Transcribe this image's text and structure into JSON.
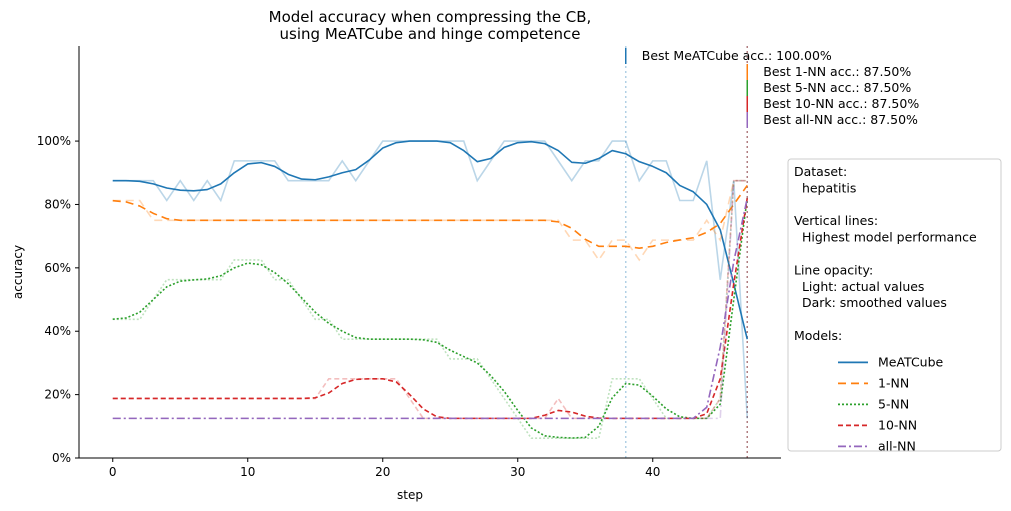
{
  "chart_data": {
    "type": "line",
    "title": "Model accuracy when compressing the CB,\nusing MeATCube and hinge competence",
    "xlabel": "step",
    "ylabel": "accuracy",
    "xlim": [
      -2.5,
      49.5
    ],
    "ylim": [
      0,
      1.3
    ],
    "x_ticks": [
      0,
      10,
      20,
      30,
      40
    ],
    "x_tick_labels": [
      "0",
      "10",
      "20",
      "30",
      "40"
    ],
    "y_ticks": [
      0,
      0.2,
      0.4,
      0.6,
      0.8,
      1.0
    ],
    "y_tick_labels": [
      "0%",
      "20%",
      "40%",
      "60%",
      "80%",
      "100%"
    ],
    "grid": false,
    "series": [
      {
        "name": "MeATCube",
        "color": "#1f77b4",
        "dash": "solid",
        "actual": [
          0.875,
          0.875,
          0.875,
          0.875,
          0.8125,
          0.875,
          0.8125,
          0.875,
          0.8125,
          0.9375,
          0.9375,
          0.9375,
          0.9375,
          0.875,
          0.875,
          0.875,
          0.875,
          0.9375,
          0.875,
          0.9375,
          1.0,
          1.0,
          1.0,
          1.0,
          1.0,
          1.0,
          1.0,
          0.875,
          0.9375,
          1.0,
          1.0,
          1.0,
          1.0,
          0.9375,
          0.875,
          0.9375,
          0.9375,
          1.0,
          1.0,
          0.875,
          0.9375,
          0.9375,
          0.8125,
          0.8125,
          0.9375,
          0.5625,
          0.875,
          0.125
        ],
        "smoothed": [
          0.875,
          0.875,
          0.873,
          0.865,
          0.852,
          0.845,
          0.843,
          0.847,
          0.865,
          0.9,
          0.928,
          0.932,
          0.92,
          0.895,
          0.88,
          0.878,
          0.887,
          0.9,
          0.91,
          0.94,
          0.978,
          0.995,
          1.0,
          1.0,
          1.0,
          0.995,
          0.97,
          0.935,
          0.945,
          0.98,
          0.995,
          0.998,
          0.992,
          0.97,
          0.933,
          0.93,
          0.945,
          0.97,
          0.96,
          0.935,
          0.92,
          0.9,
          0.86,
          0.84,
          0.8,
          0.72,
          0.55,
          0.375
        ]
      },
      {
        "name": "1-NN",
        "color": "#ff7f0e",
        "dash": "8,5",
        "actual": [
          0.8125,
          0.8125,
          0.8125,
          0.75,
          0.75,
          0.75,
          0.75,
          0.75,
          0.75,
          0.75,
          0.75,
          0.75,
          0.75,
          0.75,
          0.75,
          0.75,
          0.75,
          0.75,
          0.75,
          0.75,
          0.75,
          0.75,
          0.75,
          0.75,
          0.75,
          0.75,
          0.75,
          0.75,
          0.75,
          0.75,
          0.75,
          0.75,
          0.75,
          0.75,
          0.6875,
          0.6875,
          0.625,
          0.6875,
          0.6875,
          0.625,
          0.6875,
          0.6875,
          0.6875,
          0.6875,
          0.75,
          0.6875,
          0.875,
          0.875
        ],
        "smoothed": [
          0.812,
          0.808,
          0.795,
          0.772,
          0.755,
          0.75,
          0.75,
          0.75,
          0.75,
          0.75,
          0.75,
          0.75,
          0.75,
          0.75,
          0.75,
          0.75,
          0.75,
          0.75,
          0.75,
          0.75,
          0.75,
          0.75,
          0.75,
          0.75,
          0.75,
          0.75,
          0.75,
          0.75,
          0.75,
          0.75,
          0.75,
          0.75,
          0.75,
          0.745,
          0.725,
          0.69,
          0.668,
          0.668,
          0.668,
          0.662,
          0.668,
          0.68,
          0.688,
          0.695,
          0.712,
          0.74,
          0.8,
          0.86
        ]
      },
      {
        "name": "5-NN",
        "color": "#2ca02c",
        "dash": "2,2",
        "actual": [
          0.4375,
          0.4375,
          0.4375,
          0.5,
          0.5625,
          0.5625,
          0.5625,
          0.5625,
          0.5625,
          0.625,
          0.625,
          0.625,
          0.5625,
          0.5625,
          0.5,
          0.4375,
          0.4375,
          0.375,
          0.375,
          0.375,
          0.375,
          0.375,
          0.375,
          0.375,
          0.375,
          0.3125,
          0.3125,
          0.3125,
          0.25,
          0.1875,
          0.125,
          0.0625,
          0.0625,
          0.0625,
          0.0625,
          0.0625,
          0.0625,
          0.25,
          0.25,
          0.25,
          0.1875,
          0.125,
          0.125,
          0.125,
          0.125,
          0.1875,
          0.875,
          0.875
        ],
        "smoothed": [
          0.438,
          0.442,
          0.46,
          0.5,
          0.54,
          0.558,
          0.562,
          0.565,
          0.575,
          0.6,
          0.615,
          0.61,
          0.585,
          0.55,
          0.505,
          0.46,
          0.425,
          0.4,
          0.38,
          0.375,
          0.375,
          0.375,
          0.375,
          0.373,
          0.365,
          0.34,
          0.32,
          0.3,
          0.26,
          0.21,
          0.15,
          0.095,
          0.07,
          0.065,
          0.063,
          0.065,
          0.1,
          0.19,
          0.235,
          0.23,
          0.195,
          0.155,
          0.13,
          0.125,
          0.125,
          0.17,
          0.5,
          0.82
        ]
      },
      {
        "name": "10-NN",
        "color": "#d62728",
        "dash": "5,3",
        "actual": [
          0.1875,
          0.1875,
          0.1875,
          0.1875,
          0.1875,
          0.1875,
          0.1875,
          0.1875,
          0.1875,
          0.1875,
          0.1875,
          0.1875,
          0.1875,
          0.1875,
          0.1875,
          0.1875,
          0.25,
          0.25,
          0.25,
          0.25,
          0.25,
          0.25,
          0.1875,
          0.125,
          0.125,
          0.125,
          0.125,
          0.125,
          0.125,
          0.125,
          0.125,
          0.125,
          0.125,
          0.1875,
          0.125,
          0.125,
          0.125,
          0.125,
          0.125,
          0.125,
          0.125,
          0.125,
          0.125,
          0.125,
          0.125,
          0.1875,
          0.875,
          0.875
        ],
        "smoothed": [
          0.188,
          0.188,
          0.188,
          0.188,
          0.188,
          0.188,
          0.188,
          0.188,
          0.188,
          0.188,
          0.188,
          0.188,
          0.188,
          0.188,
          0.188,
          0.19,
          0.205,
          0.235,
          0.248,
          0.25,
          0.25,
          0.24,
          0.2,
          0.155,
          0.13,
          0.125,
          0.125,
          0.125,
          0.125,
          0.125,
          0.125,
          0.125,
          0.135,
          0.15,
          0.145,
          0.132,
          0.126,
          0.125,
          0.125,
          0.125,
          0.125,
          0.125,
          0.125,
          0.125,
          0.14,
          0.25,
          0.55,
          0.82
        ]
      },
      {
        "name": "all-NN",
        "color": "#9467bd",
        "dash": "8,3,2,3",
        "actual": [
          0.125,
          0.125,
          0.125,
          0.125,
          0.125,
          0.125,
          0.125,
          0.125,
          0.125,
          0.125,
          0.125,
          0.125,
          0.125,
          0.125,
          0.125,
          0.125,
          0.125,
          0.125,
          0.125,
          0.125,
          0.125,
          0.125,
          0.125,
          0.125,
          0.125,
          0.125,
          0.125,
          0.125,
          0.125,
          0.125,
          0.125,
          0.125,
          0.125,
          0.125,
          0.125,
          0.125,
          0.125,
          0.125,
          0.125,
          0.125,
          0.125,
          0.125,
          0.125,
          0.125,
          0.125,
          0.125,
          0.875,
          0.875
        ],
        "smoothed": [
          0.125,
          0.125,
          0.125,
          0.125,
          0.125,
          0.125,
          0.125,
          0.125,
          0.125,
          0.125,
          0.125,
          0.125,
          0.125,
          0.125,
          0.125,
          0.125,
          0.125,
          0.125,
          0.125,
          0.125,
          0.125,
          0.125,
          0.125,
          0.125,
          0.125,
          0.125,
          0.125,
          0.125,
          0.125,
          0.125,
          0.125,
          0.125,
          0.125,
          0.125,
          0.125,
          0.125,
          0.125,
          0.125,
          0.125,
          0.125,
          0.125,
          0.125,
          0.125,
          0.125,
          0.16,
          0.35,
          0.62,
          0.82
        ]
      }
    ],
    "vertical_lines": [
      {
        "series": "MeATCube",
        "x": 38,
        "color": "#1f77b4",
        "label": "Best MeATCube acc.: 100.00%"
      },
      {
        "series": "1-NN",
        "x": 47,
        "color": "#ff7f0e",
        "label": "Best 1-NN acc.: 87.50%"
      },
      {
        "series": "5-NN",
        "x": 47,
        "color": "#2ca02c",
        "label": "Best 5-NN acc.: 87.50%"
      },
      {
        "series": "10-NN",
        "x": 47,
        "color": "#d62728",
        "label": "Best 10-NN acc.: 87.50%"
      },
      {
        "series": "all-NN",
        "x": 47,
        "color": "#9467bd",
        "label": "Best all-NN acc.: 87.50%"
      }
    ],
    "legend": {
      "position": "right",
      "lines": [
        "Dataset:",
        "  hepatitis",
        "",
        "Vertical lines:",
        "  Highest model performance",
        "",
        "Line opacity:",
        "  Light: actual values",
        "  Dark: smoothed values",
        "",
        "Models:"
      ]
    }
  }
}
